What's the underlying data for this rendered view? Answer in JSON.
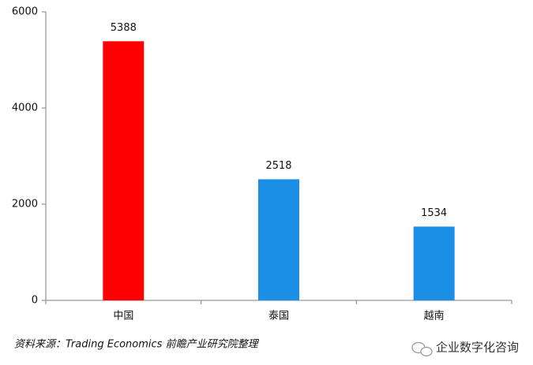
{
  "chart_data": {
    "type": "bar",
    "categories": [
      "中国",
      "泰国",
      "越南"
    ],
    "values": [
      5388,
      2518,
      1534
    ],
    "colors": [
      "#ff0000",
      "#1b8ee6",
      "#1b8ee6"
    ],
    "ylim": [
      0,
      6000
    ],
    "yticks": [
      0,
      2000,
      4000,
      6000
    ],
    "source": "资料来源：Trading Economics 前瞻产业研究院整理",
    "watermark": "企业数字化咨询"
  }
}
